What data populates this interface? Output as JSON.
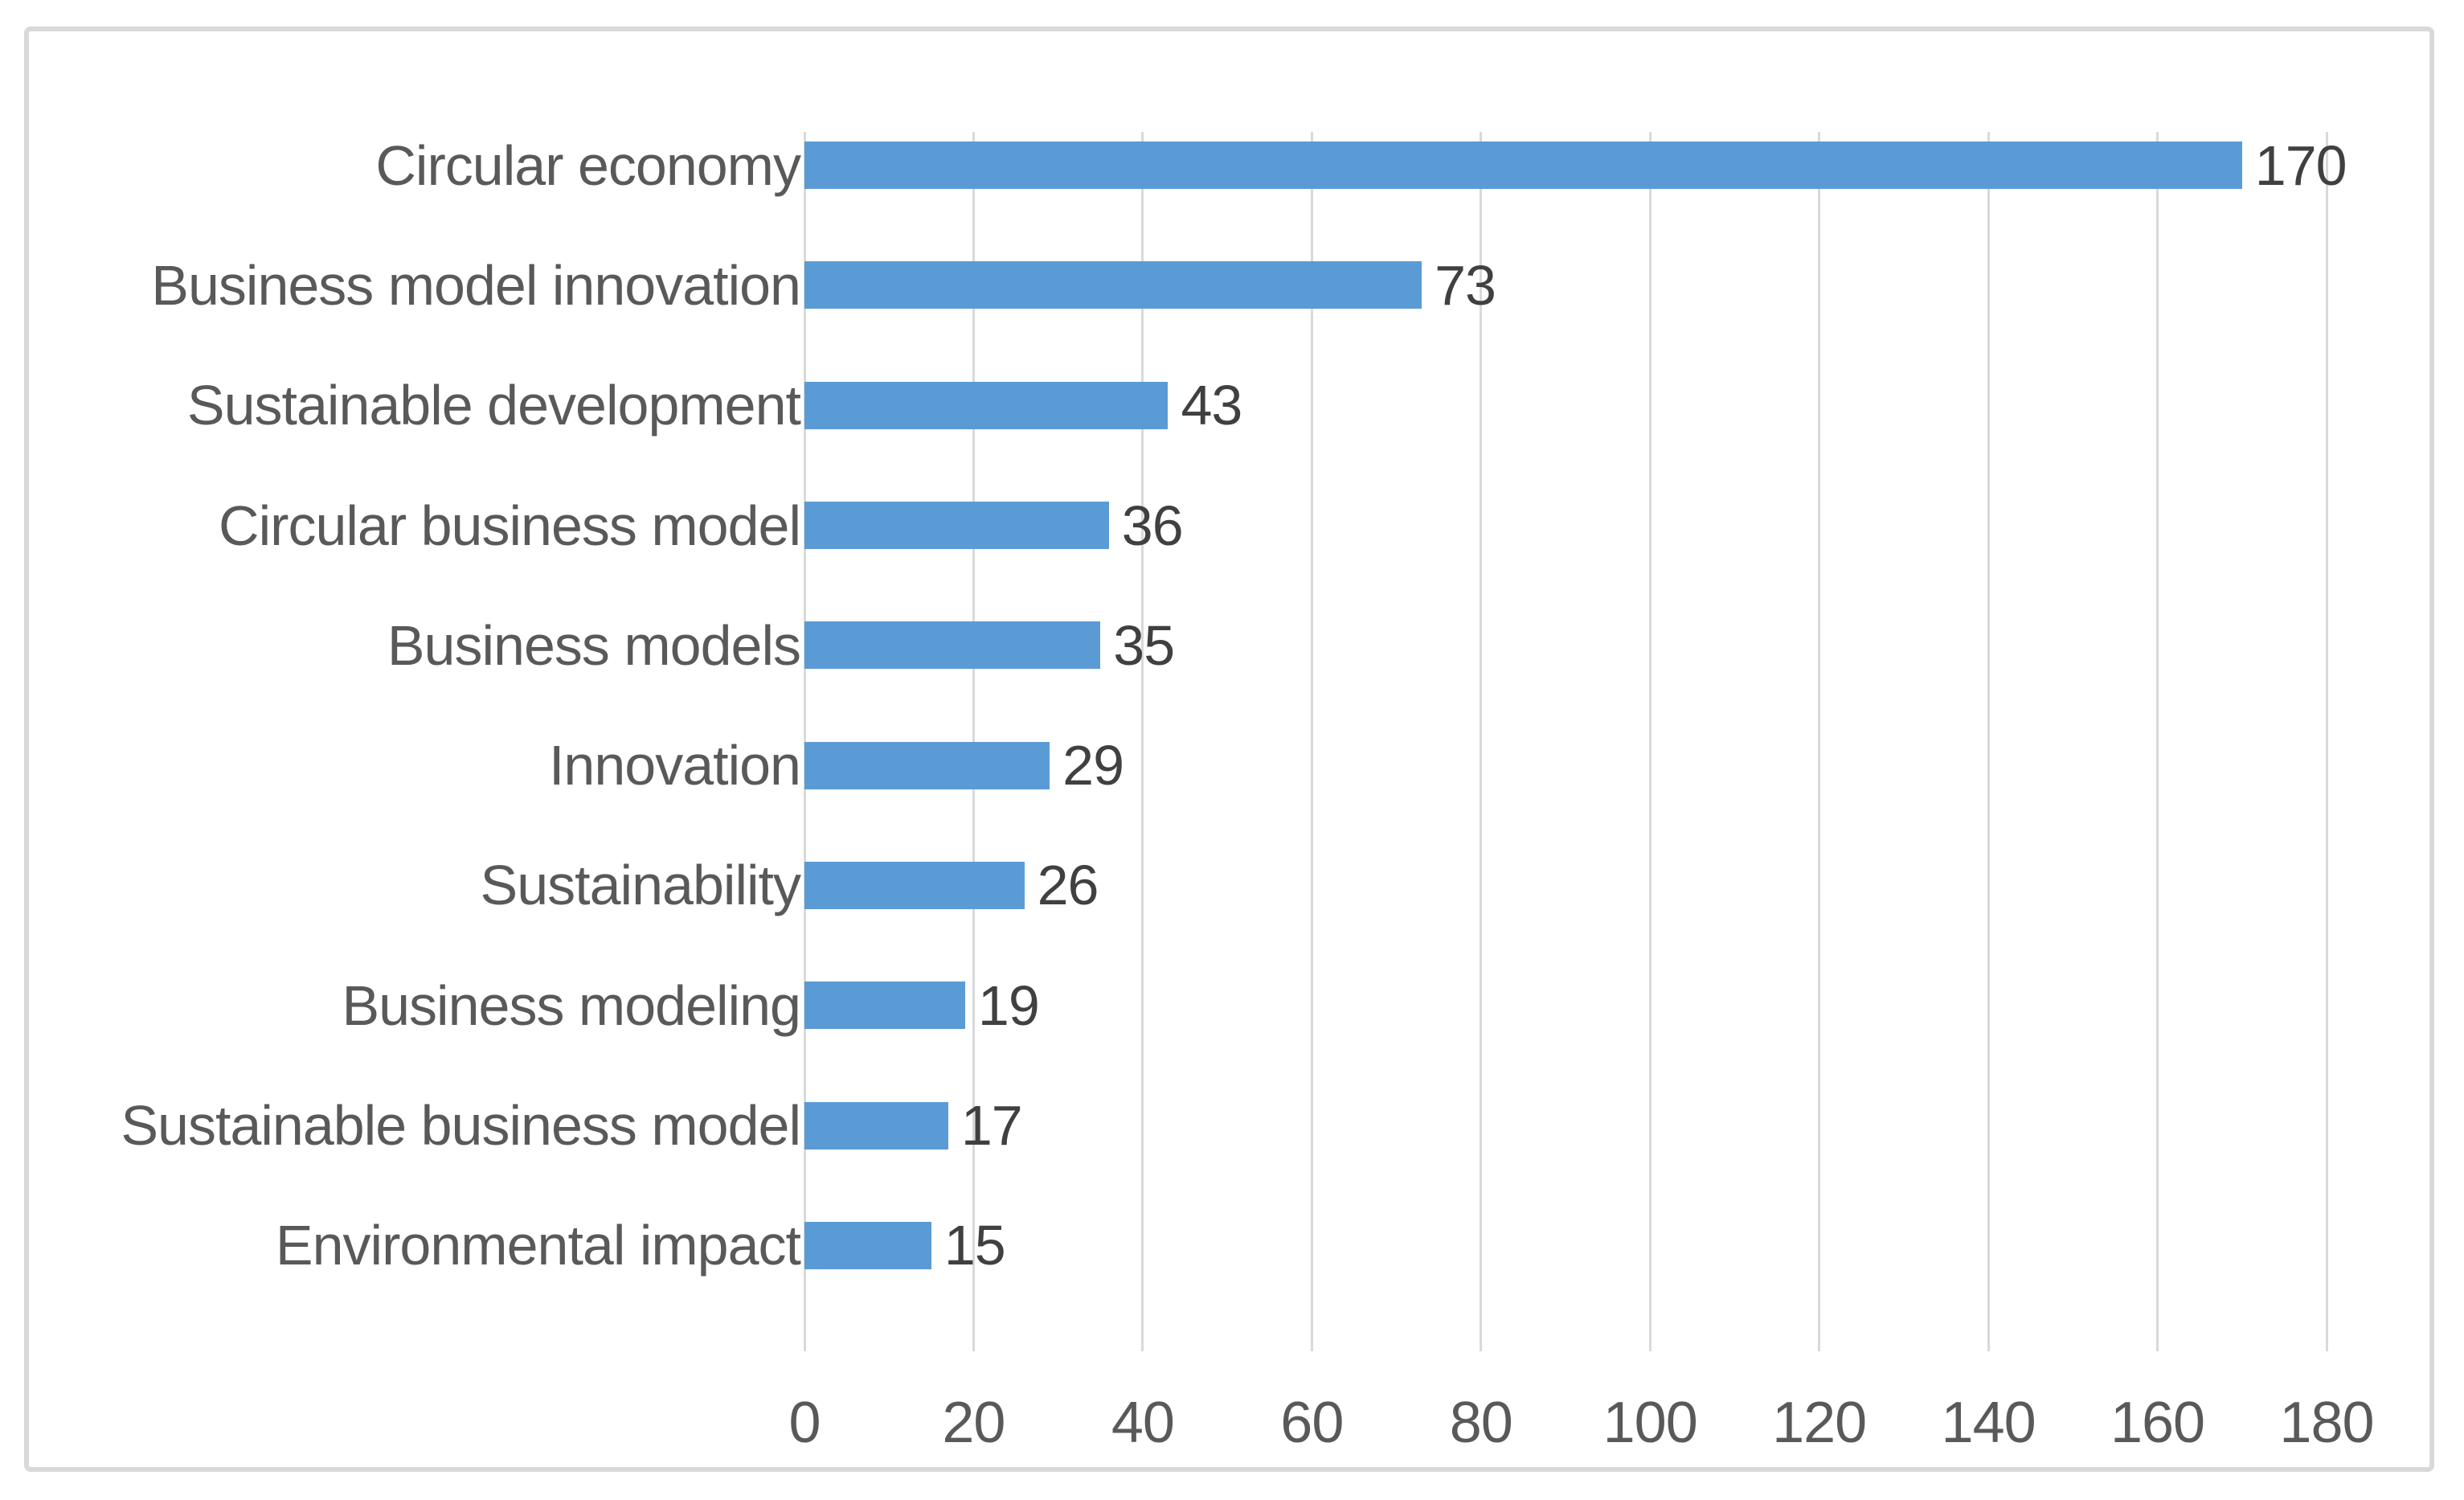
{
  "chart_data": {
    "type": "bar",
    "orientation": "horizontal",
    "title": "",
    "xlabel": "",
    "ylabel": "",
    "categories": [
      "Circular economy",
      "Business model innovation",
      "Sustainable development",
      "Circular business model",
      "Business models",
      "Innovation",
      "Sustainability",
      "Business modeling",
      "Sustainable business model",
      "Environmental impact"
    ],
    "values": [
      170,
      73,
      43,
      36,
      35,
      29,
      26,
      19,
      17,
      15
    ],
    "data_labels": [
      170,
      73,
      43,
      36,
      35,
      29,
      26,
      19,
      17,
      15
    ],
    "xlim": [
      0,
      180
    ],
    "xticks": [
      0,
      20,
      40,
      60,
      80,
      100,
      120,
      140,
      160,
      180
    ],
    "grid": true,
    "legend": false,
    "colors": {
      "bar": "#5B9BD5",
      "gridline": "#D9D9D9",
      "category_label": "#595959",
      "value_label": "#404040",
      "tick_label": "#595959",
      "frame_border": "#D9D9D9",
      "background": "#FFFFFF"
    }
  }
}
